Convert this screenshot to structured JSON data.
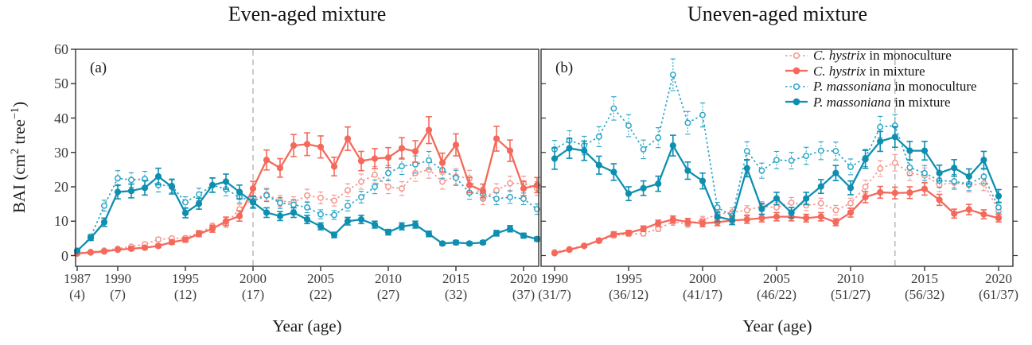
{
  "chart_data": {
    "type": "line",
    "ylim": [
      0,
      60
    ],
    "y_ticks": [
      0,
      10,
      20,
      30,
      40,
      50,
      60
    ],
    "ylabel": {
      "pre": "BAI (cm",
      "sup1": "2",
      "mid": " tree",
      "sup2": "−1",
      "post": ")"
    },
    "grid": false,
    "colors": {
      "ch_mono": "#F5968E",
      "ch_mix": "#F4695B",
      "pm_mono": "#2BA6C6",
      "pm_mix": "#0E8FB0",
      "axis": "#333333",
      "tick_text": "#3d3d3d",
      "ref_line": "#ADADAD"
    },
    "legend": {
      "position": "top-right-panel-b",
      "items": [
        {
          "key": "ch_mono",
          "species": "C. hystrix",
          "rest": " in monoculture",
          "style": "dotted-open"
        },
        {
          "key": "ch_mix",
          "species": "C. hystrix",
          "rest": " in mixture",
          "style": "solid-filled"
        },
        {
          "key": "pm_mono",
          "species": "P. massoniana",
          "rest": " in monoculture",
          "style": "dotted-open"
        },
        {
          "key": "pm_mix",
          "species": "P. massoniana",
          "rest": " in mixture",
          "style": "solid-filled"
        }
      ]
    },
    "panels": [
      {
        "tag": "(a)",
        "title": "Even-aged mixture",
        "xlabel": "Year (age)",
        "reference_line_year": 2000,
        "x_ticks": [
          {
            "year": 1987,
            "age_label": "(4)"
          },
          {
            "year": 1990,
            "age_label": "(7)"
          },
          {
            "year": 1995,
            "age_label": "(12)"
          },
          {
            "year": 2000,
            "age_label": "(17)"
          },
          {
            "year": 2005,
            "age_label": "(22)"
          },
          {
            "year": 2010,
            "age_label": "(27)"
          },
          {
            "year": 2015,
            "age_label": "(32)"
          },
          {
            "year": 2020,
            "age_label": "(37)"
          }
        ],
        "years": [
          1987,
          1988,
          1989,
          1990,
          1991,
          1992,
          1993,
          1994,
          1995,
          1996,
          1997,
          1998,
          1999,
          2000,
          2001,
          2002,
          2003,
          2004,
          2005,
          2006,
          2007,
          2008,
          2009,
          2010,
          2011,
          2012,
          2013,
          2014,
          2015,
          2016,
          2017,
          2018,
          2019,
          2020,
          2021
        ],
        "series": [
          {
            "key": "ch_mono",
            "label": "C. hystrix in monoculture",
            "style": "dotted-open",
            "values": [
              0.8,
              1.1,
              1.5,
              2.0,
              2.6,
              3.3,
              4.7,
              5.0,
              5.1,
              6.6,
              8.5,
              9.2,
              13.5,
              16.5,
              17.8,
              15.9,
              15.5,
              17.5,
              16.8,
              16.0,
              19.0,
              21.5,
              23.5,
              20.0,
              19.5,
              24.0,
              25.0,
              21.5,
              23.0,
              22.5,
              16.5,
              19.0,
              21.0,
              21.0,
              19.5
            ],
            "errors": [
              0.2,
              0.2,
              0.3,
              0.3,
              0.4,
              0.5,
              0.6,
              0.6,
              0.6,
              0.7,
              0.9,
              1.0,
              1.4,
              1.7,
              1.8,
              1.6,
              1.6,
              1.8,
              1.7,
              1.6,
              1.9,
              2.2,
              2.4,
              2.0,
              2.0,
              2.4,
              2.5,
              2.2,
              2.3,
              2.3,
              1.7,
              1.9,
              2.1,
              2.1,
              2.0
            ]
          },
          {
            "key": "ch_mix",
            "label": "C. hystrix in mixture",
            "style": "solid-filled",
            "values": [
              0.6,
              0.9,
              1.2,
              1.7,
              2.0,
              2.3,
              2.8,
              3.9,
              4.6,
              6.3,
              7.8,
              10.0,
              11.5,
              19.5,
              27.8,
              25.5,
              32.0,
              32.4,
              31.6,
              25.9,
              34.0,
              27.5,
              28.2,
              28.5,
              31.2,
              30.3,
              36.5,
              27.0,
              32.2,
              20.5,
              18.8,
              34.0,
              30.5,
              19.5,
              20.5
            ],
            "errors": [
              0.2,
              0.2,
              0.3,
              0.3,
              0.4,
              0.4,
              0.5,
              0.6,
              0.7,
              0.8,
              1.0,
              1.2,
              1.5,
              2.1,
              2.9,
              2.7,
              3.2,
              3.3,
              3.2,
              2.7,
              3.4,
              2.8,
              2.9,
              2.9,
              3.1,
              3.1,
              3.9,
              2.8,
              3.2,
              2.2,
              2.0,
              3.6,
              3.1,
              2.1,
              2.2
            ]
          },
          {
            "key": "pm_mono",
            "label": "P. massoniana in monoculture",
            "style": "dotted-open",
            "values": [
              1.2,
              5.5,
              14.5,
              22.5,
              22.0,
              22.3,
              20.5,
              20.3,
              15.5,
              17.8,
              20.5,
              19.3,
              17.0,
              15.8,
              17.5,
              15.3,
              14.8,
              14.0,
              12.0,
              11.8,
              14.5,
              17.0,
              20.0,
              24.0,
              26.0,
              26.5,
              27.7,
              24.9,
              22.6,
              18.3,
              18.0,
              16.5,
              17.0,
              16.5,
              13.5
            ],
            "errors": [
              0.3,
              0.7,
              1.6,
              2.2,
              2.1,
              2.2,
              2.0,
              2.0,
              1.6,
              1.8,
              2.0,
              1.9,
              1.7,
              1.6,
              1.8,
              1.6,
              1.5,
              1.5,
              1.3,
              1.3,
              1.5,
              1.7,
              2.0,
              2.2,
              2.4,
              2.5,
              2.6,
              2.4,
              2.2,
              1.9,
              1.8,
              1.7,
              1.8,
              1.7,
              1.5
            ]
          },
          {
            "key": "pm_mix",
            "label": "P. massoniana in mixture",
            "style": "solid-filled",
            "values": [
              1.4,
              5.1,
              9.7,
              18.5,
              18.8,
              19.7,
              23.0,
              20.0,
              12.4,
              15.1,
              20.5,
              21.5,
              18.5,
              15.5,
              12.5,
              11.5,
              12.5,
              10.5,
              8.5,
              6.0,
              10.0,
              10.5,
              9.0,
              6.8,
              8.5,
              9.0,
              6.3,
              3.5,
              3.8,
              3.5,
              3.8,
              6.5,
              7.8,
              5.8,
              4.8
            ],
            "errors": [
              0.3,
              0.7,
              1.2,
              2.0,
              2.0,
              2.1,
              2.4,
              2.1,
              1.4,
              1.6,
              2.1,
              2.2,
              2.0,
              1.7,
              1.4,
              1.3,
              1.4,
              1.2,
              1.0,
              0.8,
              1.1,
              1.2,
              1.0,
              0.8,
              1.0,
              1.0,
              0.8,
              0.5,
              0.6,
              0.5,
              0.5,
              0.8,
              0.9,
              0.7,
              0.6
            ]
          }
        ]
      },
      {
        "tag": "(b)",
        "title": "Uneven-aged mixture",
        "xlabel": "Year (age)",
        "reference_line_year": 2013,
        "x_ticks": [
          {
            "year": 1990,
            "age_label": "(31/7)"
          },
          {
            "year": 1995,
            "age_label": "(36/12)"
          },
          {
            "year": 2000,
            "age_label": "(41/17)"
          },
          {
            "year": 2005,
            "age_label": "(46/22)"
          },
          {
            "year": 2010,
            "age_label": "(51/27)"
          },
          {
            "year": 2015,
            "age_label": "(56/32)"
          },
          {
            "year": 2020,
            "age_label": "(61/37)"
          }
        ],
        "years": [
          1990,
          1991,
          1992,
          1993,
          1994,
          1995,
          1996,
          1997,
          1998,
          1999,
          2000,
          2001,
          2002,
          2003,
          2004,
          2005,
          2006,
          2007,
          2008,
          2009,
          2010,
          2011,
          2012,
          2013,
          2014,
          2015,
          2016,
          2017,
          2018,
          2019,
          2020
        ],
        "series": [
          {
            "key": "ch_mono",
            "label": "C. hystrix in monoculture",
            "style": "dotted-open",
            "values": [
              1.0,
              1.9,
              2.9,
              4.2,
              5.8,
              6.3,
              6.4,
              7.8,
              9.8,
              9.2,
              10.3,
              12.0,
              12.6,
              13.2,
              14.3,
              14.0,
              15.4,
              14.6,
              15.2,
              13.2,
              15.2,
              20.0,
              25.3,
              27.0,
              24.0,
              23.3,
              20.6,
              21.2,
              20.5,
              21.0,
              13.0
            ],
            "errors": [
              0.2,
              0.3,
              0.4,
              0.5,
              0.6,
              0.7,
              0.7,
              0.8,
              1.0,
              1.0,
              1.1,
              1.2,
              1.3,
              1.3,
              1.4,
              1.4,
              1.5,
              1.5,
              1.5,
              1.4,
              1.5,
              1.9,
              2.3,
              2.4,
              2.2,
              2.2,
              2.0,
              2.0,
              2.0,
              2.1,
              1.5
            ]
          },
          {
            "key": "ch_mix",
            "label": "C. hystrix in mixture",
            "style": "solid-filled",
            "values": [
              0.7,
              1.7,
              2.8,
              4.4,
              6.2,
              6.6,
              7.8,
              9.4,
              10.5,
              9.8,
              9.4,
              9.7,
              10.2,
              10.5,
              10.9,
              11.3,
              11.3,
              10.9,
              11.3,
              9.7,
              12.5,
              17.0,
              18.4,
              18.2,
              18.3,
              19.4,
              16.2,
              12.2,
              13.4,
              12.0,
              10.9
            ],
            "errors": [
              0.2,
              0.3,
              0.4,
              0.5,
              0.7,
              0.7,
              0.8,
              0.9,
              1.0,
              1.0,
              1.0,
              1.0,
              1.1,
              1.1,
              1.1,
              1.2,
              1.2,
              1.1,
              1.2,
              1.0,
              1.3,
              1.6,
              1.7,
              1.7,
              1.7,
              1.8,
              1.6,
              1.3,
              1.5,
              1.3,
              1.1
            ]
          },
          {
            "key": "pm_mono",
            "label": "P. massoniana in monoculture",
            "style": "dotted-open",
            "values": [
              30.9,
              33.5,
              32.0,
              34.6,
              42.8,
              37.8,
              30.9,
              34.3,
              52.6,
              38.6,
              40.9,
              14.0,
              11.5,
              30.4,
              24.7,
              27.8,
              27.6,
              29.0,
              30.5,
              30.4,
              25.8,
              28.4,
              37.4,
              37.8,
              25.6,
              24.0,
              21.8,
              21.6,
              20.8,
              23.0,
              14.0
            ],
            "errors": [
              2.6,
              2.8,
              2.7,
              2.9,
              3.4,
              3.2,
              2.7,
              2.9,
              4.6,
              3.3,
              3.5,
              1.5,
              1.3,
              2.7,
              2.2,
              2.5,
              2.4,
              2.5,
              2.6,
              2.6,
              2.3,
              2.5,
              3.1,
              3.2,
              2.3,
              2.2,
              2.0,
              2.0,
              1.9,
              2.1,
              1.6
            ]
          },
          {
            "key": "pm_mix",
            "label": "P. massoniana in mixture",
            "style": "solid-filled",
            "values": [
              28.2,
              31.2,
              30.5,
              26.3,
              24.3,
              18.0,
              19.6,
              20.9,
              32.0,
              24.7,
              21.7,
              11.3,
              10.3,
              25.4,
              13.6,
              16.6,
              12.5,
              16.6,
              20.1,
              24.0,
              19.7,
              28.0,
              33.2,
              34.5,
              30.5,
              30.5,
              24.0,
              25.5,
              23.0,
              27.8,
              17.3
            ],
            "errors": [
              3.1,
              2.9,
              2.8,
              2.6,
              2.4,
              2.0,
              2.1,
              2.2,
              3.0,
              2.5,
              2.3,
              1.4,
              1.3,
              2.5,
              1.6,
              1.8,
              1.5,
              1.8,
              2.0,
              2.2,
              2.0,
              2.6,
              2.9,
              3.0,
              2.7,
              2.7,
              2.3,
              2.4,
              2.2,
              2.5,
              1.9
            ]
          }
        ]
      }
    ]
  }
}
